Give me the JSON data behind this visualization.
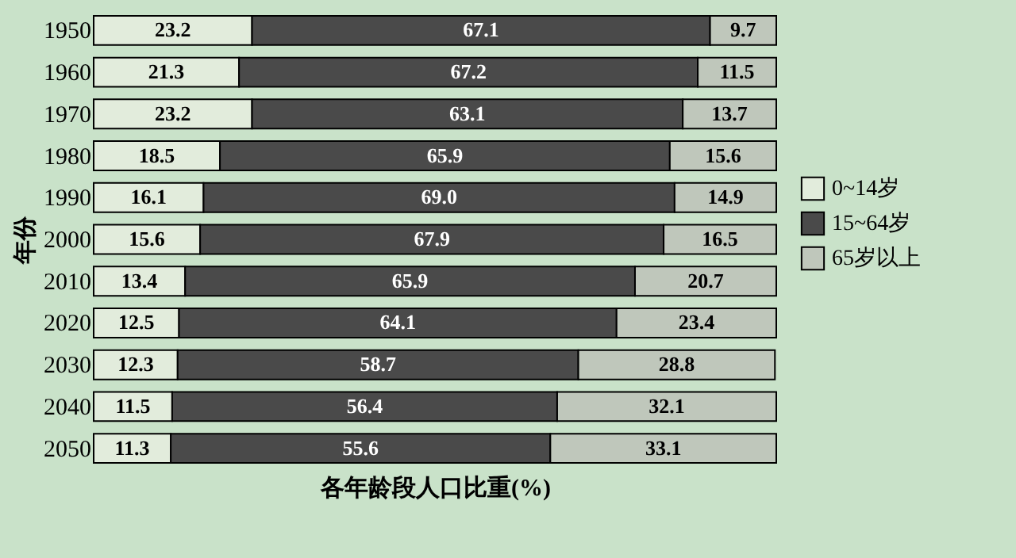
{
  "chart_data": {
    "type": "bar",
    "orientation": "horizontal",
    "stacked": true,
    "xlabel": "各年龄段人口比重(%)",
    "ylabel": "年份",
    "legend": "right",
    "categories": [
      "1950",
      "1960",
      "1970",
      "1980",
      "1990",
      "2000",
      "2010",
      "2020",
      "2030",
      "2040",
      "2050"
    ],
    "series": [
      {
        "name": "0~14岁",
        "color": "#e2ecdc",
        "values": [
          23.2,
          21.3,
          23.2,
          18.5,
          16.1,
          15.6,
          13.4,
          12.5,
          12.3,
          11.5,
          11.3
        ],
        "value_labels": [
          "23.2",
          "21.3",
          "23.2",
          "18.5",
          "16.1",
          "15.6",
          "13.4",
          "12.5",
          "12.3",
          "11.5",
          "11.3"
        ]
      },
      {
        "name": "15~64岁",
        "color": "#4a4a4a",
        "values": [
          67.1,
          67.2,
          63.1,
          65.9,
          69.0,
          67.9,
          65.9,
          64.1,
          58.7,
          56.4,
          55.6
        ],
        "value_labels": [
          "67.1",
          "67.2",
          "63.1",
          "65.9",
          "69.0",
          "67.9",
          "65.9",
          "64.1",
          "58.7",
          "56.4",
          "55.6"
        ]
      },
      {
        "name": "65岁以上",
        "color": "#bfc7bb",
        "values": [
          9.7,
          11.5,
          13.7,
          15.6,
          14.9,
          16.5,
          20.7,
          23.4,
          28.8,
          32.1,
          33.1
        ],
        "value_labels": [
          "9.7",
          "11.5",
          "13.7",
          "15.6",
          "14.9",
          "16.5",
          "20.7",
          "23.4",
          "28.8",
          "32.1",
          "33.1"
        ]
      }
    ]
  }
}
